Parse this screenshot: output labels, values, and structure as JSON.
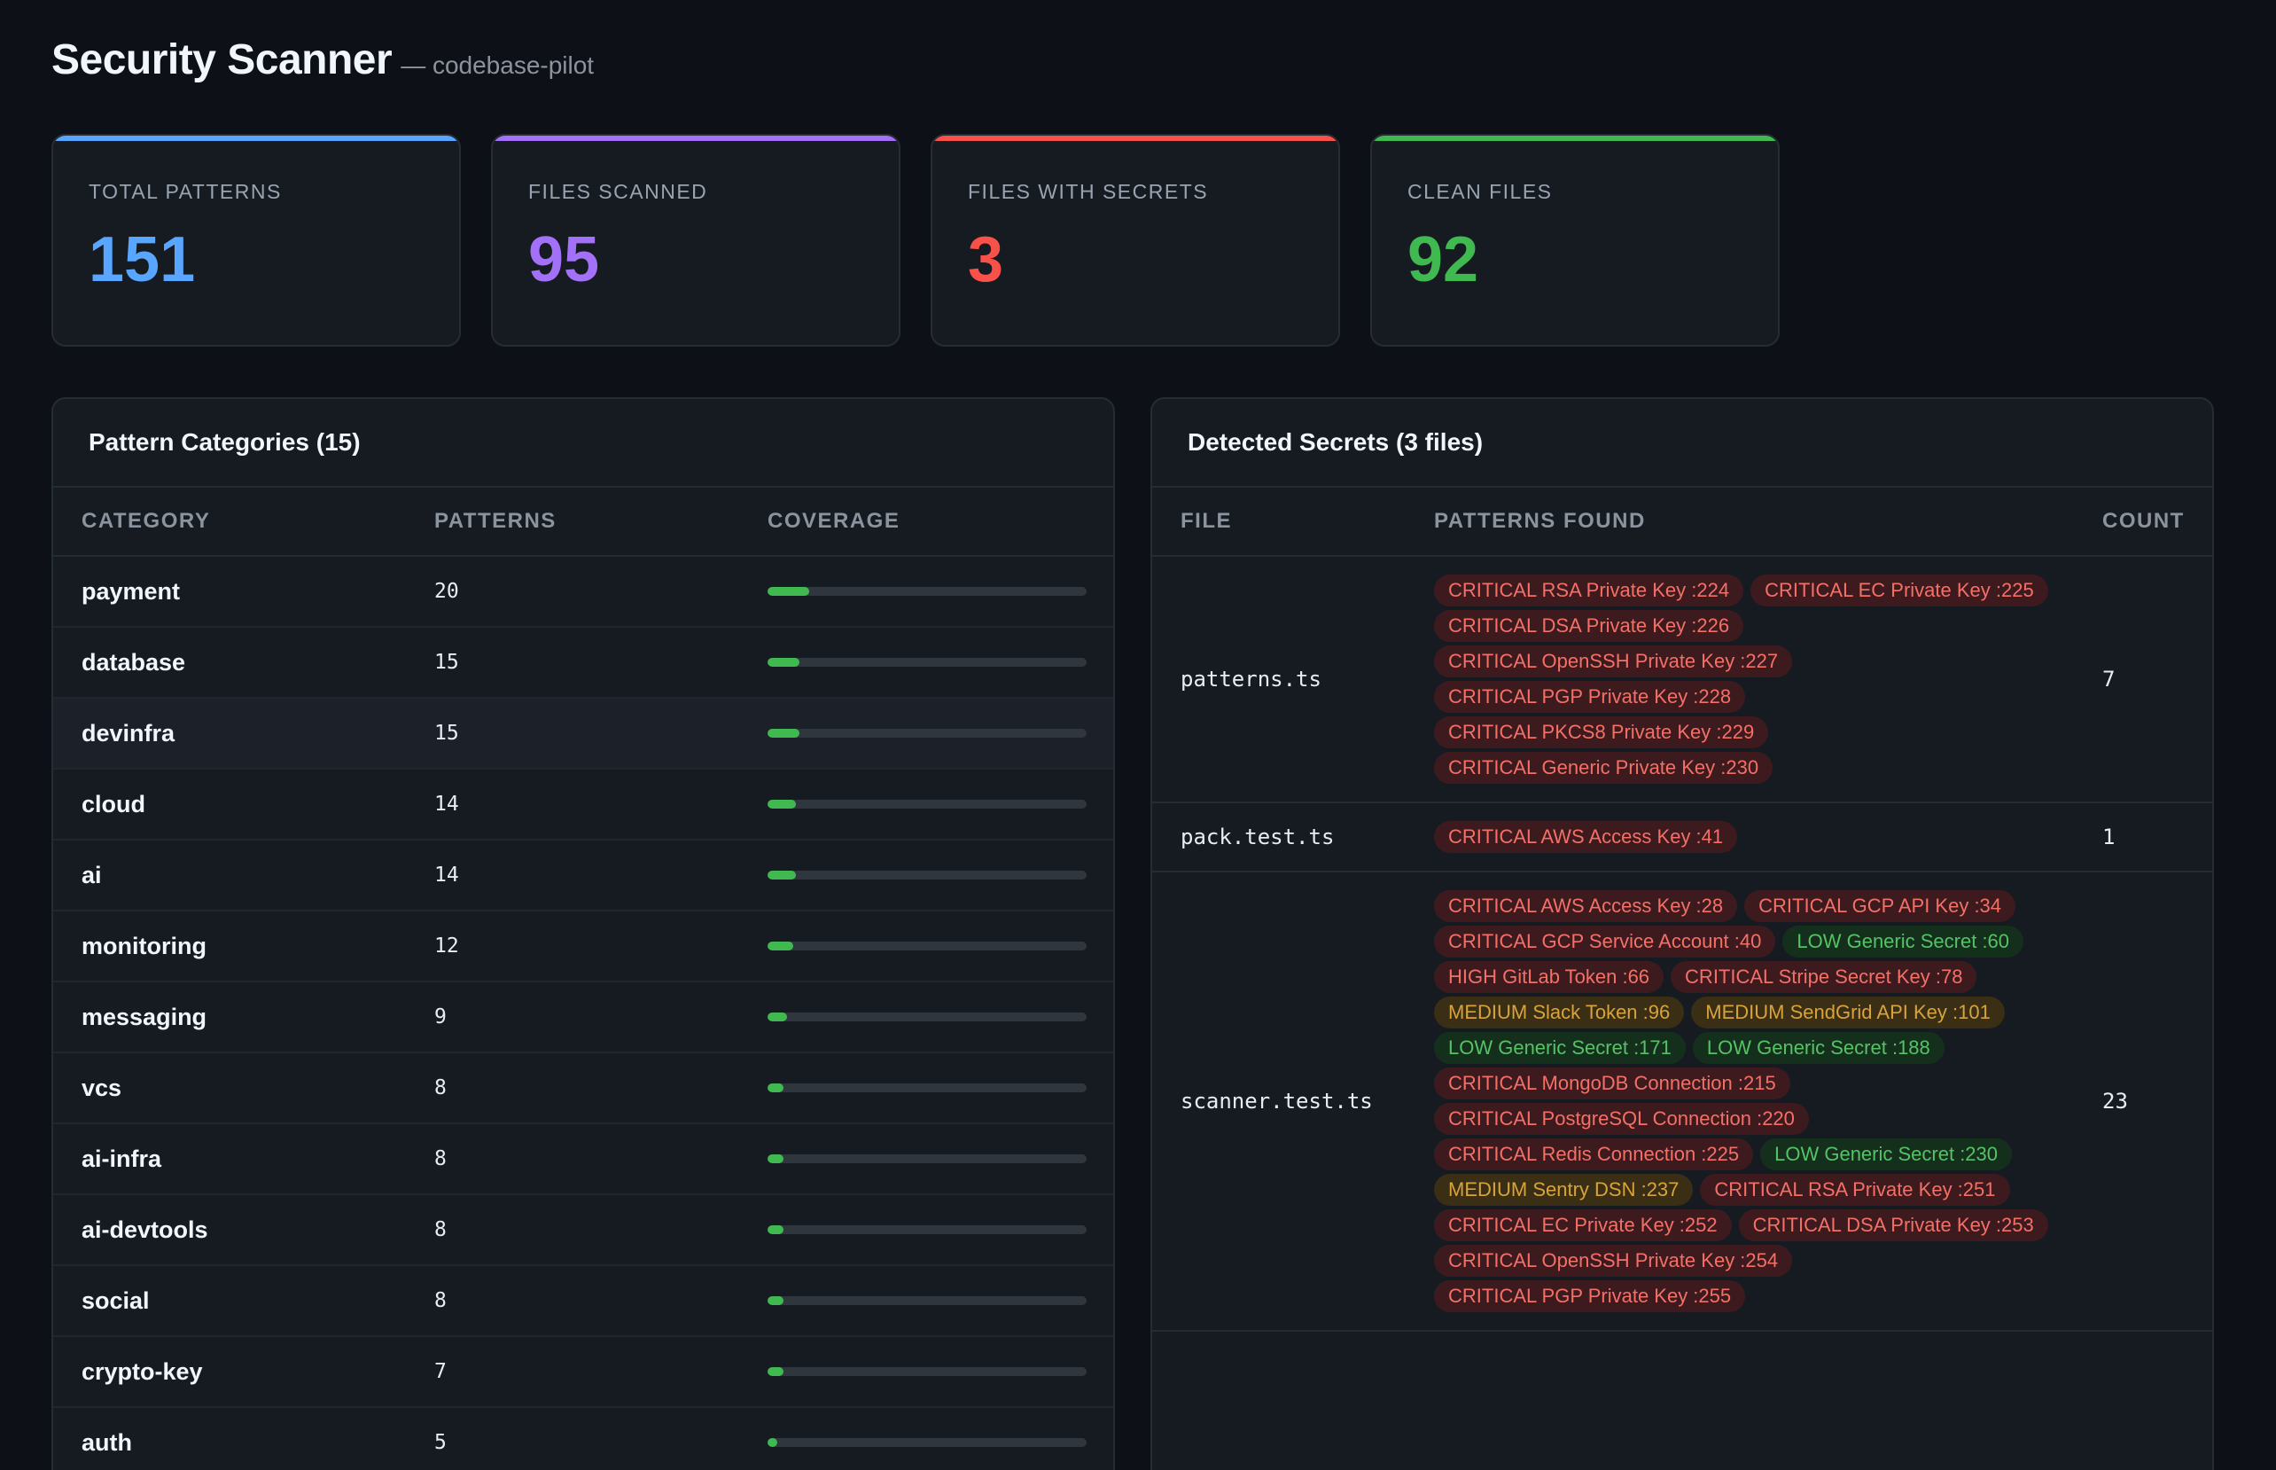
{
  "header": {
    "title": "Security Scanner",
    "subtitle": "— codebase-pilot"
  },
  "stats": [
    {
      "label": "TOTAL PATTERNS",
      "value": "151",
      "color": "#58a6ff"
    },
    {
      "label": "FILES SCANNED",
      "value": "95",
      "color": "#a371f7"
    },
    {
      "label": "FILES WITH SECRETS",
      "value": "3",
      "color": "#f85149"
    },
    {
      "label": "CLEAN FILES",
      "value": "92",
      "color": "#3fb950"
    }
  ],
  "categories_panel": {
    "title": "Pattern Categories (15)",
    "columns": [
      "CATEGORY",
      "PATTERNS",
      "COVERAGE"
    ],
    "rows": [
      {
        "name": "payment",
        "count": "20",
        "coverage": 0.13
      },
      {
        "name": "database",
        "count": "15",
        "coverage": 0.1
      },
      {
        "name": "devinfra",
        "count": "15",
        "coverage": 0.1
      },
      {
        "name": "cloud",
        "count": "14",
        "coverage": 0.09
      },
      {
        "name": "ai",
        "count": "14",
        "coverage": 0.09
      },
      {
        "name": "monitoring",
        "count": "12",
        "coverage": 0.08
      },
      {
        "name": "messaging",
        "count": "9",
        "coverage": 0.06
      },
      {
        "name": "vcs",
        "count": "8",
        "coverage": 0.05
      },
      {
        "name": "ai-infra",
        "count": "8",
        "coverage": 0.05
      },
      {
        "name": "ai-devtools",
        "count": "8",
        "coverage": 0.05
      },
      {
        "name": "social",
        "count": "8",
        "coverage": 0.05
      },
      {
        "name": "crypto-key",
        "count": "7",
        "coverage": 0.05
      },
      {
        "name": "auth",
        "count": "5",
        "coverage": 0.03
      }
    ]
  },
  "secrets_panel": {
    "title": "Detected Secrets (3 files)",
    "columns": [
      "FILE",
      "PATTERNS FOUND",
      "COUNT"
    ],
    "rows": [
      {
        "file": "patterns.ts",
        "count": "7",
        "findings": [
          {
            "text": "CRITICAL RSA Private Key :224",
            "severity": "critical"
          },
          {
            "text": "CRITICAL EC Private Key :225",
            "severity": "critical"
          },
          {
            "text": "CRITICAL DSA Private Key :226",
            "severity": "critical"
          },
          {
            "text": "CRITICAL OpenSSH Private Key :227",
            "severity": "critical"
          },
          {
            "text": "CRITICAL PGP Private Key :228",
            "severity": "critical"
          },
          {
            "text": "CRITICAL PKCS8 Private Key :229",
            "severity": "critical"
          },
          {
            "text": "CRITICAL Generic Private Key :230",
            "severity": "critical"
          }
        ]
      },
      {
        "file": "pack.test.ts",
        "count": "1",
        "findings": [
          {
            "text": "CRITICAL AWS Access Key :41",
            "severity": "critical"
          }
        ]
      },
      {
        "file": "scanner.test.ts",
        "count": "23",
        "findings": [
          {
            "text": "CRITICAL AWS Access Key :28",
            "severity": "critical"
          },
          {
            "text": "CRITICAL GCP API Key :34",
            "severity": "critical"
          },
          {
            "text": "CRITICAL GCP Service Account :40",
            "severity": "critical"
          },
          {
            "text": "LOW Generic Secret :60",
            "severity": "low"
          },
          {
            "text": "HIGH GitLab Token :66",
            "severity": "high"
          },
          {
            "text": "CRITICAL Stripe Secret Key :78",
            "severity": "critical"
          },
          {
            "text": "MEDIUM Slack Token :96",
            "severity": "medium"
          },
          {
            "text": "MEDIUM SendGrid API Key :101",
            "severity": "medium"
          },
          {
            "text": "LOW Generic Secret :171",
            "severity": "low"
          },
          {
            "text": "LOW Generic Secret :188",
            "severity": "low"
          },
          {
            "text": "CRITICAL MongoDB Connection :215",
            "severity": "critical"
          },
          {
            "text": "CRITICAL PostgreSQL Connection :220",
            "severity": "critical"
          },
          {
            "text": "CRITICAL Redis Connection :225",
            "severity": "critical"
          },
          {
            "text": "LOW Generic Secret :230",
            "severity": "low"
          },
          {
            "text": "MEDIUM Sentry DSN :237",
            "severity": "medium"
          },
          {
            "text": "CRITICAL RSA Private Key :251",
            "severity": "critical"
          },
          {
            "text": "CRITICAL EC Private Key :252",
            "severity": "critical"
          },
          {
            "text": "CRITICAL DSA Private Key :253",
            "severity": "critical"
          },
          {
            "text": "CRITICAL OpenSSH Private Key :254",
            "severity": "critical"
          },
          {
            "text": "CRITICAL PGP Private Key :255",
            "severity": "critical"
          }
        ]
      }
    ]
  }
}
